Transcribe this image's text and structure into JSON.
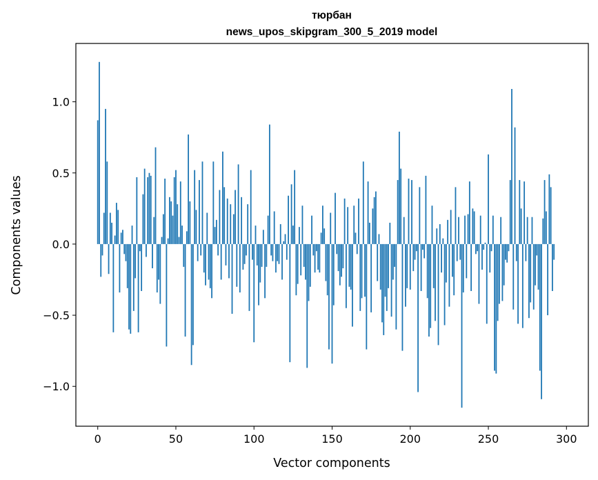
{
  "chart_data": {
    "type": "bar",
    "title": "тюрбан",
    "subtitle": "news_upos_skipgram_300_5_2019 model",
    "xlabel": "Vector components",
    "ylabel": "Components values",
    "xlim": [
      -14,
      314
    ],
    "ylim": [
      -1.28,
      1.41
    ],
    "xticks": [
      0,
      50,
      100,
      150,
      200,
      250,
      300
    ],
    "yticks": [
      -1.0,
      -0.5,
      0.0,
      0.5,
      1.0
    ],
    "ytick_labels": [
      "−1.0",
      "−0.5",
      "0.0",
      "0.5",
      "1.0"
    ],
    "bar_color": "#1f77b4",
    "grid": false,
    "values": [
      0.87,
      1.28,
      -0.23,
      -0.08,
      0.22,
      0.95,
      0.58,
      -0.21,
      0.22,
      0.15,
      -0.62,
      0.06,
      0.29,
      0.24,
      -0.34,
      0.08,
      0.1,
      -0.07,
      -0.12,
      -0.31,
      -0.6,
      -0.63,
      0.13,
      -0.47,
      -0.24,
      0.47,
      -0.62,
      -0.05,
      -0.33,
      0.35,
      0.53,
      -0.09,
      0.47,
      0.5,
      0.48,
      -0.17,
      0.19,
      0.68,
      -0.34,
      -0.25,
      -0.42,
      0.05,
      0.21,
      0.46,
      -0.72,
      0.04,
      0.33,
      0.3,
      0.2,
      0.47,
      0.52,
      0.28,
      0.05,
      0.44,
      0.13,
      -0.16,
      -0.65,
      0.09,
      0.77,
      0.3,
      -0.85,
      -0.71,
      0.52,
      0.24,
      -0.12,
      0.45,
      -0.08,
      0.58,
      -0.2,
      -0.29,
      0.22,
      -0.25,
      -0.31,
      -0.38,
      0.58,
      0.12,
      0.17,
      -0.08,
      0.38,
      -0.25,
      0.65,
      0.4,
      -0.15,
      0.32,
      -0.24,
      0.28,
      -0.49,
      0.21,
      0.38,
      -0.3,
      0.56,
      -0.34,
      0.33,
      -0.18,
      -0.14,
      -0.08,
      0.28,
      -0.47,
      0.52,
      -0.11,
      -0.69,
      0.13,
      -0.15,
      -0.43,
      -0.27,
      -0.16,
      0.1,
      -0.38,
      -0.16,
      0.2,
      0.84,
      -0.08,
      -0.12,
      0.23,
      -0.2,
      -0.12,
      -0.14,
      0.14,
      -0.25,
      0.02,
      0.07,
      -0.11,
      0.34,
      -0.83,
      0.42,
      0.13,
      0.52,
      -0.36,
      -0.28,
      0.12,
      -0.22,
      0.27,
      -0.16,
      -0.25,
      -0.87,
      -0.4,
      -0.3,
      0.2,
      -0.08,
      -0.2,
      -0.05,
      -0.18,
      -0.2,
      0.08,
      0.27,
      0.11,
      -0.26,
      -0.36,
      -0.74,
      0.22,
      -0.84,
      -0.43,
      0.36,
      -0.07,
      -0.19,
      -0.29,
      -0.23,
      -0.17,
      0.32,
      -0.45,
      0.26,
      -0.3,
      -0.32,
      -0.58,
      0.27,
      0.08,
      -0.07,
      0.32,
      -0.47,
      -0.38,
      0.58,
      -0.37,
      -0.74,
      0.44,
      0.15,
      -0.48,
      0.25,
      0.33,
      0.37,
      -0.26,
      0.07,
      -0.32,
      -0.55,
      -0.64,
      -0.37,
      -0.47,
      -0.31,
      0.15,
      -0.51,
      -0.25,
      -0.16,
      -0.6,
      0.45,
      0.79,
      0.53,
      -0.75,
      0.19,
      -0.44,
      -0.31,
      0.46,
      -0.32,
      0.45,
      -0.19,
      -0.11,
      -0.05,
      -1.04,
      0.4,
      -0.33,
      -0.04,
      -0.1,
      0.48,
      -0.38,
      -0.65,
      -0.59,
      0.27,
      -0.31,
      -0.54,
      0.11,
      -0.71,
      0.14,
      -0.2,
      0.04,
      -0.57,
      -0.27,
      0.17,
      -0.44,
      0.24,
      -0.23,
      -0.36,
      0.4,
      -0.12,
      0.19,
      -0.11,
      -1.15,
      -0.34,
      0.2,
      -0.24,
      0.21,
      0.44,
      -0.33,
      0.25,
      0.23,
      -0.07,
      -0.05,
      -0.42,
      0.2,
      -0.18,
      -0.04,
      0.01,
      -0.56,
      0.63,
      -0.2,
      -0.05,
      0.2,
      -0.89,
      -0.91,
      -0.54,
      -0.42,
      0.19,
      -0.4,
      -0.29,
      -0.11,
      -0.13,
      -0.05,
      0.45,
      1.09,
      -0.46,
      0.82,
      -0.12,
      -0.56,
      0.45,
      0.25,
      -0.59,
      0.44,
      -0.12,
      0.19,
      -0.52,
      -0.41,
      0.19,
      -0.46,
      -0.29,
      -0.08,
      -0.32,
      -0.89,
      -1.09,
      0.18,
      0.45,
      0.23,
      -0.5,
      0.49,
      0.4,
      -0.33,
      -0.11
    ]
  }
}
